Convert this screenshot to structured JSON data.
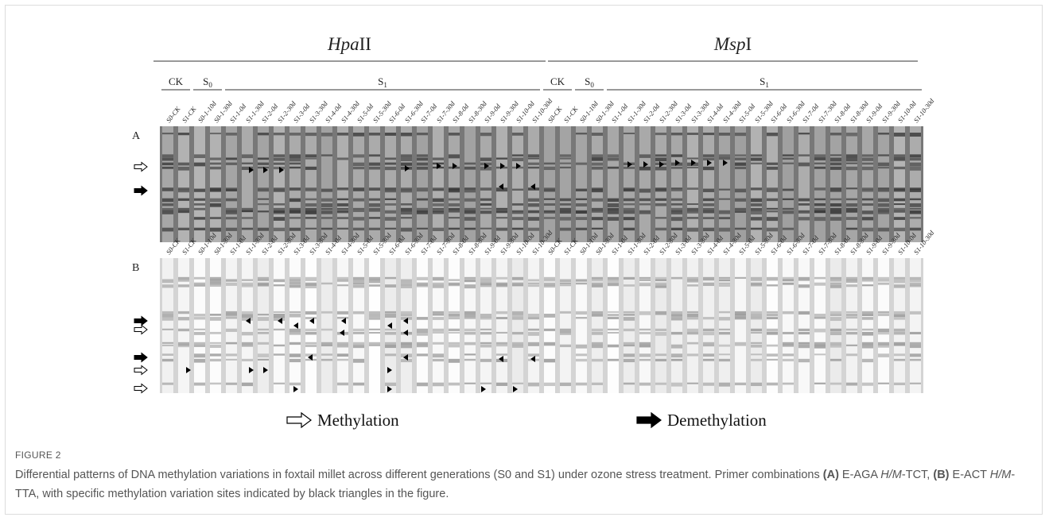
{
  "figure": {
    "enzymes": [
      {
        "name": "Hpa",
        "suffix": "II"
      },
      {
        "name": "Msp",
        "suffix": "I"
      }
    ],
    "groups": [
      {
        "label": "CK"
      },
      {
        "label": "S",
        "sub": "0"
      },
      {
        "label": "S",
        "sub": "1"
      }
    ],
    "lanes": [
      "S0-CK",
      "S1-CK",
      "S0-1-10d",
      "S0-1-30d",
      "S1-1-0d",
      "S1-1-30d",
      "S1-2-0d",
      "S1-2-30d",
      "S1-3-0d",
      "S1-3-30d",
      "S1-4-0d",
      "S1-4-30d",
      "S1-5-0d",
      "S1-5-30d",
      "S1-6-0d",
      "S1-6-30d",
      "S1-7-0d",
      "S1-7-30d",
      "S1-8-0d",
      "S1-8-30d",
      "S1-9-0d",
      "S1-9-30d",
      "S1-10-0d",
      "S1-10-30d"
    ],
    "panels": [
      "A",
      "B"
    ],
    "legend": {
      "methylation": "Methylation",
      "demethylation": "Demethylation"
    }
  },
  "caption": {
    "label": "FIGURE 2",
    "parts": [
      {
        "text": "Differential patterns of DNA methylation variations in foxtail millet across different generations (S0 and S1) under ozone stress treatment. Primer combinations ",
        "style": "normal"
      },
      {
        "text": "(A)",
        "style": "bold"
      },
      {
        "text": " E-AGA ",
        "style": "normal"
      },
      {
        "text": "H/M",
        "style": "italic"
      },
      {
        "text": "-TCT, ",
        "style": "normal"
      },
      {
        "text": "(B)",
        "style": "bold"
      },
      {
        "text": " E-ACT ",
        "style": "normal"
      },
      {
        "text": "H/M",
        "style": "italic"
      },
      {
        "text": "-TTA, with specific methylation variation sites indicated by black triangles in the figure.",
        "style": "normal"
      }
    ]
  }
}
